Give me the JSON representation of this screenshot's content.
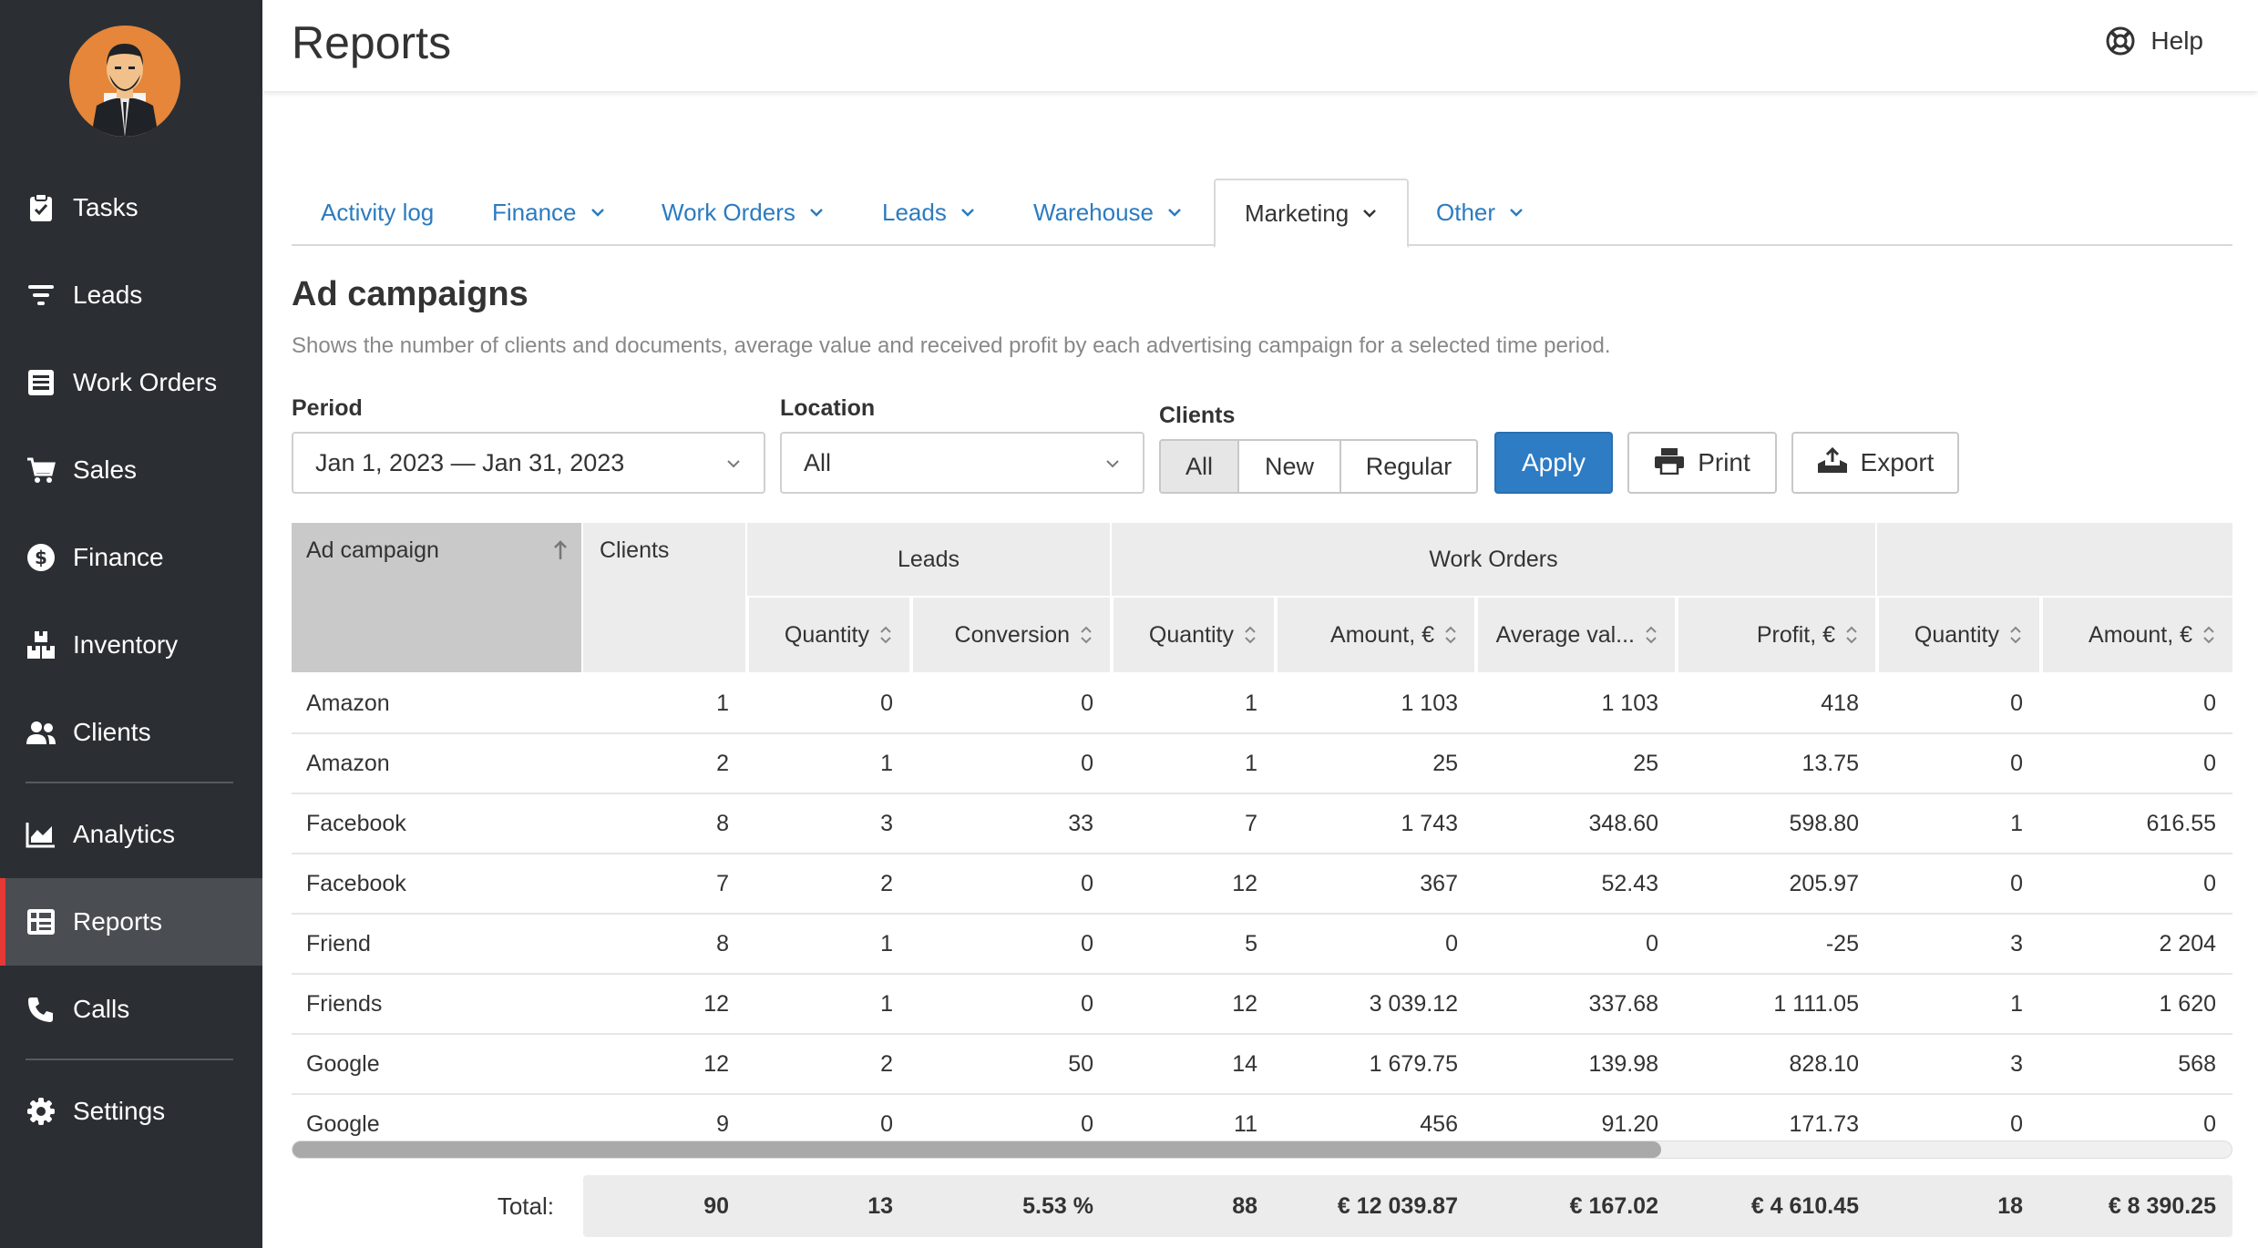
{
  "header": {
    "title": "Reports",
    "help_label": "Help"
  },
  "sidebar": {
    "items": [
      {
        "label": "Tasks",
        "icon": "clipboard-check-icon"
      },
      {
        "label": "Leads",
        "icon": "filter-icon"
      },
      {
        "label": "Work Orders",
        "icon": "inbox-icon"
      },
      {
        "label": "Sales",
        "icon": "cart-icon"
      },
      {
        "label": "Finance",
        "icon": "dollar-icon"
      },
      {
        "label": "Inventory",
        "icon": "boxes-icon"
      },
      {
        "label": "Clients",
        "icon": "users-icon"
      },
      {
        "label": "Analytics",
        "icon": "area-chart-icon"
      },
      {
        "label": "Reports",
        "icon": "report-grid-icon",
        "active": true
      },
      {
        "label": "Calls",
        "icon": "phone-icon"
      },
      {
        "label": "Settings",
        "icon": "gear-icon"
      }
    ]
  },
  "tabs": [
    {
      "label": "Activity log",
      "dropdown": false
    },
    {
      "label": "Finance",
      "dropdown": true
    },
    {
      "label": "Work Orders",
      "dropdown": true
    },
    {
      "label": "Leads",
      "dropdown": true
    },
    {
      "label": "Warehouse",
      "dropdown": true
    },
    {
      "label": "Marketing",
      "dropdown": true,
      "active": true
    },
    {
      "label": "Other",
      "dropdown": true
    }
  ],
  "section": {
    "title": "Ad campaigns",
    "description": "Shows the number of clients and documents, average value and received profit by each advertising campaign for a selected time period."
  },
  "filters": {
    "period_label": "Period",
    "period_value": "Jan 1, 2023 — Jan 31, 2023",
    "location_label": "Location",
    "location_value": "All",
    "clients_label": "Clients",
    "clients_options": [
      "All",
      "New",
      "Regular"
    ],
    "clients_selected": "All",
    "apply_label": "Apply",
    "print_label": "Print",
    "export_label": "Export"
  },
  "table": {
    "col_campaign": "Ad campaign",
    "col_clients": "Clients",
    "group_leads": "Leads",
    "group_work_orders": "Work Orders",
    "group_other": "",
    "sub_headers": [
      "Quantity",
      "Conversion",
      "Quantity",
      "Amount, €",
      "Average val...",
      "Profit, €",
      "Quantity",
      "Amount, €"
    ],
    "rows": [
      [
        "Amazon",
        "1",
        "0",
        "0",
        "1",
        "1 103",
        "1 103",
        "418",
        "0",
        "0"
      ],
      [
        "Amazon",
        "2",
        "1",
        "0",
        "1",
        "25",
        "25",
        "13.75",
        "0",
        "0"
      ],
      [
        "Facebook",
        "8",
        "3",
        "33",
        "7",
        "1 743",
        "348.60",
        "598.80",
        "1",
        "616.55"
      ],
      [
        "Facebook",
        "7",
        "2",
        "0",
        "12",
        "367",
        "52.43",
        "205.97",
        "0",
        "0"
      ],
      [
        "Friend",
        "8",
        "1",
        "0",
        "5",
        "0",
        "0",
        "-25",
        "3",
        "2 204"
      ],
      [
        "Friends",
        "12",
        "1",
        "0",
        "12",
        "3 039.12",
        "337.68",
        "1 111.05",
        "1",
        "1 620"
      ],
      [
        "Google",
        "12",
        "2",
        "50",
        "14",
        "1 679.75",
        "139.98",
        "828.10",
        "3",
        "568"
      ],
      [
        "Google",
        "9",
        "0",
        "0",
        "11",
        "456",
        "91.20",
        "171.73",
        "0",
        "0"
      ]
    ],
    "total_label": "Total:",
    "totals": [
      "90",
      "13",
      "5.53 %",
      "88",
      "€ 12 039.87",
      "€ 167.02",
      "€ 4 610.45",
      "18",
      "€ 8 390.25"
    ]
  },
  "colors": {
    "sidebar_bg": "#2b2f33",
    "accent_blue": "#2e7cc4",
    "active_marker": "#e53935",
    "avatar_bg": "#e5863a"
  }
}
